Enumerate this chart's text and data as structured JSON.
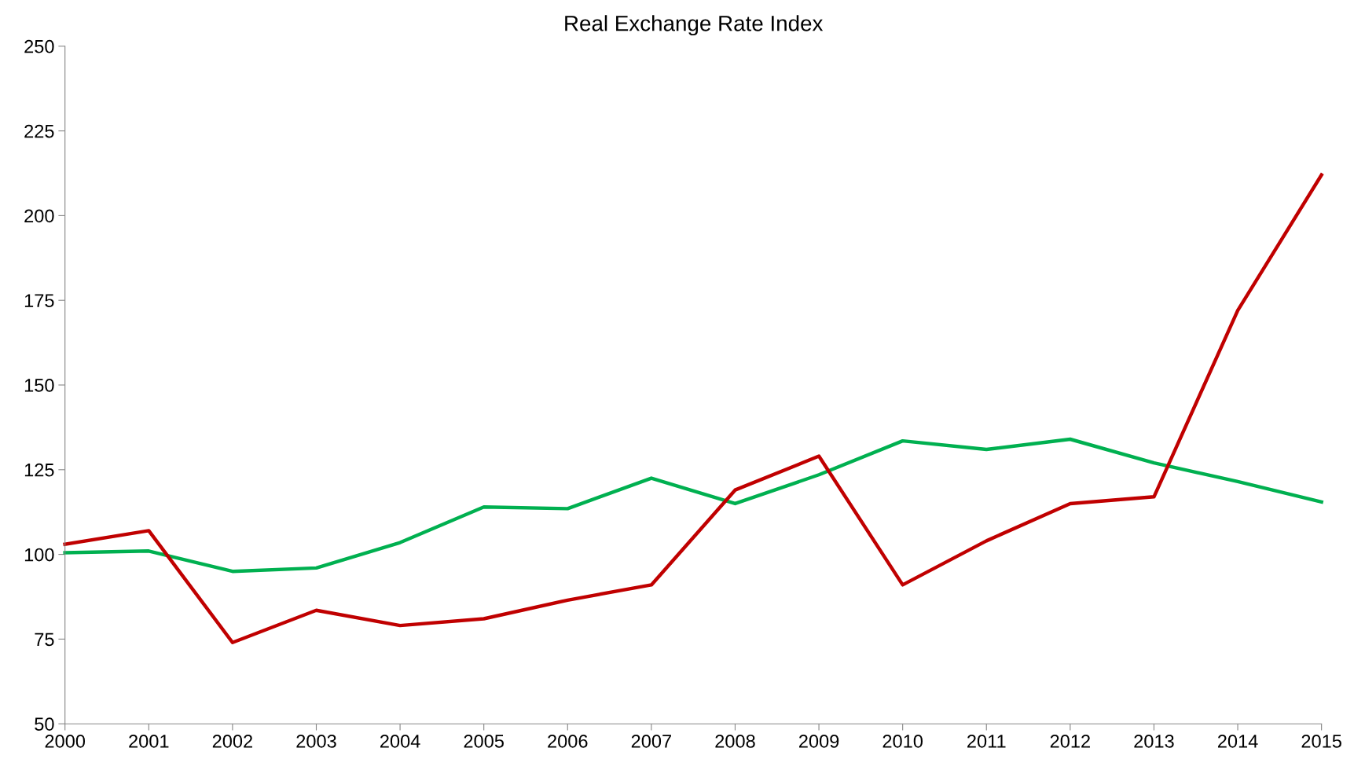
{
  "chart_data": {
    "type": "line",
    "title": "Real Exchange Rate Index",
    "categories": [
      "2000",
      "2001",
      "2002",
      "2003",
      "2004",
      "2005",
      "2006",
      "2007",
      "2008",
      "2009",
      "2010",
      "2011",
      "2012",
      "2013",
      "2014",
      "2015"
    ],
    "series": [
      {
        "color": "#00b050",
        "values": [
          100.5,
          101,
          95,
          96,
          103.5,
          114,
          113.5,
          122.5,
          115,
          123.5,
          133.5,
          131,
          134,
          127,
          121.5,
          115.5
        ]
      },
      {
        "color": "#c00000",
        "values": [
          103,
          107,
          74,
          83.5,
          79,
          81,
          86.5,
          91,
          119,
          129,
          91,
          104,
          115,
          117,
          172,
          212
        ]
      }
    ],
    "ylim": [
      50,
      250
    ],
    "yticks": [
      50,
      75,
      100,
      125,
      150,
      175,
      200,
      225,
      250
    ],
    "grid": false,
    "line_style": "solid",
    "marker": "none"
  }
}
